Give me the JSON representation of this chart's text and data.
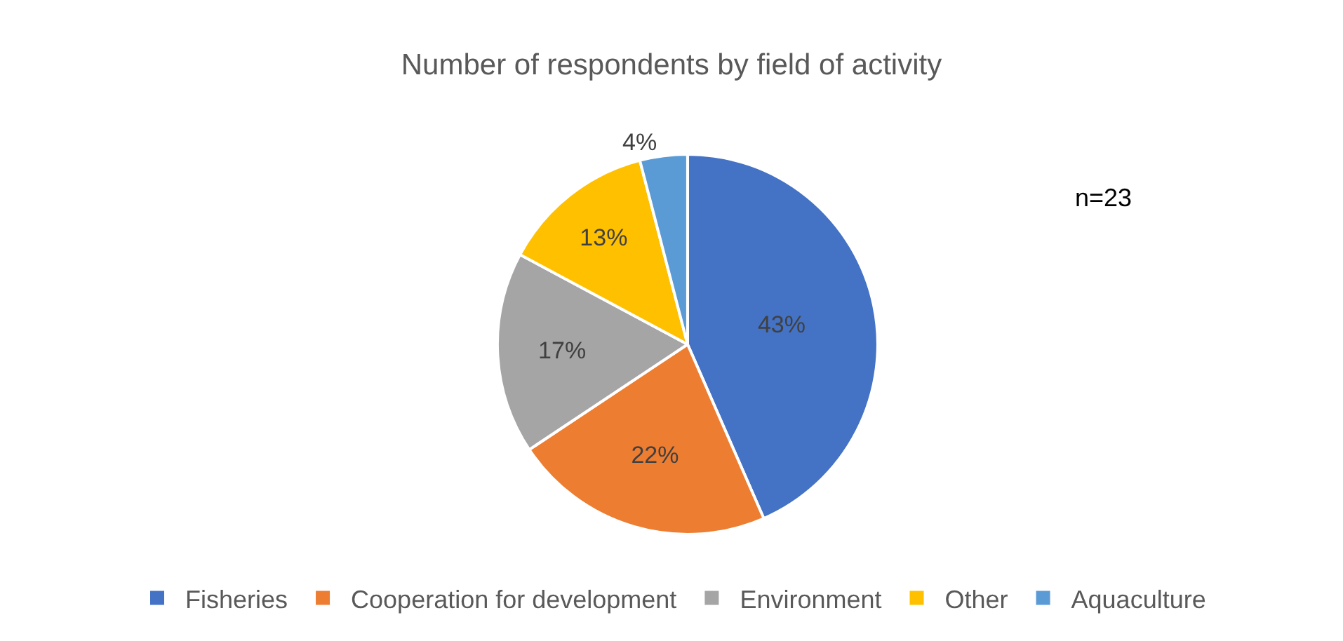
{
  "chart_data": {
    "type": "pie",
    "title": "Number of respondents by field of activity",
    "categories": [
      "Fisheries",
      "Cooperation for development",
      "Environment",
      "Other",
      "Aquaculture"
    ],
    "values": [
      43,
      22,
      17,
      13,
      4
    ],
    "value_labels": [
      "43%",
      "22%",
      "17%",
      "13%",
      "4%"
    ],
    "colors": [
      "#4472c4",
      "#ed7d31",
      "#a5a5a5",
      "#ffc000",
      "#5b9bd5"
    ],
    "annotations": [
      "n=23"
    ],
    "legend": "bottom"
  }
}
